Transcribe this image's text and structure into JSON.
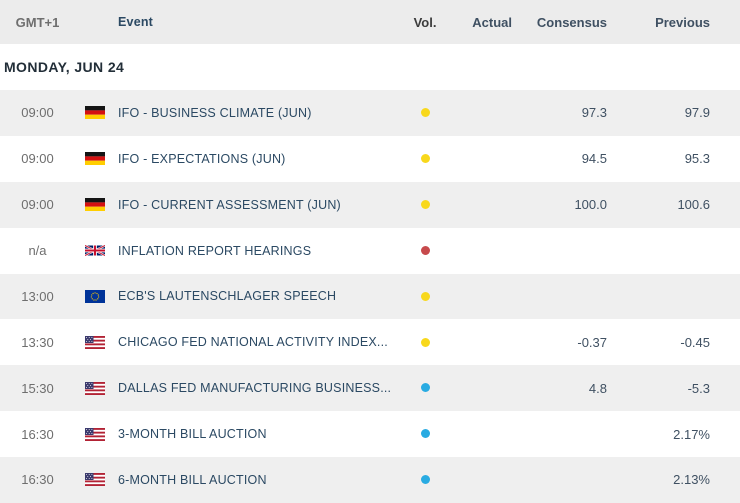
{
  "table": {
    "columns": {
      "time": "GMT+1",
      "event": "Event",
      "vol": "Vol.",
      "actual": "Actual",
      "consensus": "Consensus",
      "previous": "Previous"
    },
    "date_header": "MONDAY, JUN 24",
    "rows": [
      {
        "time": "09:00",
        "country": "de",
        "event": "IFO - BUSINESS CLIMATE (JUN)",
        "vol": "yellow",
        "actual": "",
        "consensus": "97.3",
        "previous": "97.9"
      },
      {
        "time": "09:00",
        "country": "de",
        "event": "IFO - EXPECTATIONS (JUN)",
        "vol": "yellow",
        "actual": "",
        "consensus": "94.5",
        "previous": "95.3"
      },
      {
        "time": "09:00",
        "country": "de",
        "event": "IFO - CURRENT ASSESSMENT (JUN)",
        "vol": "yellow",
        "actual": "",
        "consensus": "100.0",
        "previous": "100.6"
      },
      {
        "time": "n/a",
        "country": "gb",
        "event": "INFLATION REPORT HEARINGS",
        "vol": "red",
        "actual": "",
        "consensus": "",
        "previous": ""
      },
      {
        "time": "13:00",
        "country": "eu",
        "event": "ECB'S LAUTENSCHLAGER SPEECH",
        "vol": "yellow",
        "actual": "",
        "consensus": "",
        "previous": ""
      },
      {
        "time": "13:30",
        "country": "us",
        "event": "CHICAGO FED NATIONAL ACTIVITY INDEX...",
        "vol": "yellow",
        "actual": "",
        "consensus": "-0.37",
        "previous": "-0.45"
      },
      {
        "time": "15:30",
        "country": "us",
        "event": "DALLAS FED MANUFACTURING BUSINESS...",
        "vol": "blue",
        "actual": "",
        "consensus": "4.8",
        "previous": "-5.3"
      },
      {
        "time": "16:30",
        "country": "us",
        "event": "3-MONTH BILL AUCTION",
        "vol": "blue",
        "actual": "",
        "consensus": "",
        "previous": "2.17%"
      },
      {
        "time": "16:30",
        "country": "us",
        "event": "6-MONTH BILL AUCTION",
        "vol": "blue",
        "actual": "",
        "consensus": "",
        "previous": "2.13%"
      }
    ]
  },
  "colors": {
    "header_bg": "#ECECEC",
    "row_alt_bg": "#EFEFEF",
    "event_text": "#2b4963",
    "vol_yellow": "#F8D81C",
    "vol_red": "#C74A4C",
    "vol_blue": "#29ABE2"
  },
  "icons": {
    "flags": [
      "flag-de-icon",
      "flag-gb-icon",
      "flag-eu-icon",
      "flag-us-icon"
    ],
    "volatility": "volatility-dot-icon"
  }
}
